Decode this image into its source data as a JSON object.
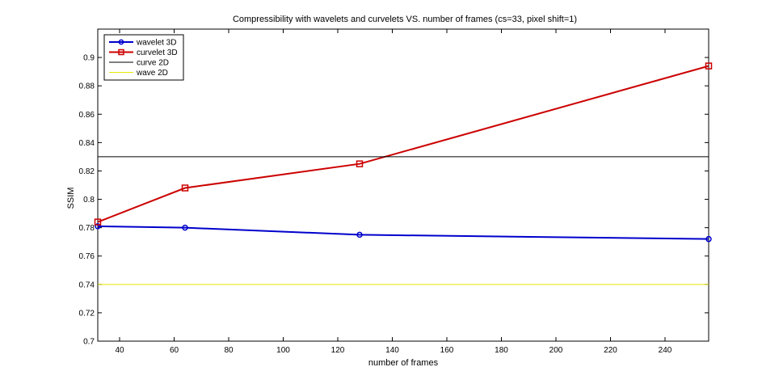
{
  "chart_data": {
    "type": "line",
    "title": "Compressibility with wavelets and curvelets VS. number of frames (cs=33, pixel shift=1)",
    "xlabel": "number of frames",
    "ylabel": "SSIM",
    "xlim": [
      32,
      256
    ],
    "ylim": [
      0.7,
      0.92
    ],
    "xticks": [
      40,
      60,
      80,
      100,
      120,
      140,
      160,
      180,
      200,
      220,
      240
    ],
    "yticks": [
      0.7,
      0.72,
      0.74,
      0.76,
      0.78,
      0.8,
      0.82,
      0.84,
      0.86,
      0.88,
      0.9
    ],
    "ytick_labels": [
      "0.7",
      "0.72",
      "0.74",
      "0.76",
      "0.78",
      "0.8",
      "0.82",
      "0.84",
      "0.86",
      "0.88",
      "0.9"
    ],
    "legend_position": "top-left",
    "series": [
      {
        "name": "wavelet 3D",
        "color": "#0000cc",
        "marker": "circle",
        "x": [
          32,
          64,
          128,
          256
        ],
        "y": [
          0.781,
          0.78,
          0.775,
          0.772
        ]
      },
      {
        "name": "curvelet 3D",
        "color": "#cc0000",
        "marker": "square",
        "x": [
          32,
          64,
          128,
          256
        ],
        "y": [
          0.784,
          0.808,
          0.825,
          0.894
        ]
      },
      {
        "name": "curve 2D",
        "color": "#000000",
        "marker": "none",
        "x": [
          32,
          256
        ],
        "y": [
          0.83,
          0.83
        ]
      },
      {
        "name": "wave 2D",
        "color": "#e6e600",
        "marker": "none",
        "x": [
          32,
          256
        ],
        "y": [
          0.74,
          0.74
        ]
      }
    ]
  }
}
